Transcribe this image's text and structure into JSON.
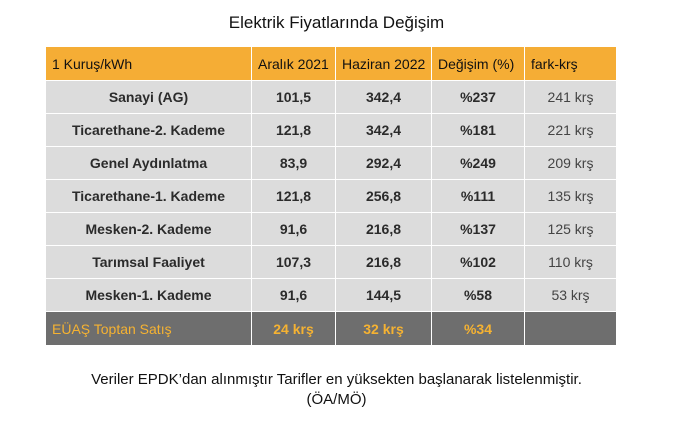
{
  "title": "Elektrik Fiyatlarında Değişim",
  "table": {
    "headers": [
      "1 Kuruş/kWh",
      "Aralık 2021",
      "Haziran 2022",
      "Değişim (%)",
      "fark-krş"
    ],
    "rows": [
      {
        "name": "Sanayi (AG)",
        "dec2021": "101,5",
        "jun2022": "342,4",
        "change": "%237",
        "diff": "241 krş"
      },
      {
        "name": "Ticarethane-2. Kademe",
        "dec2021": "121,8",
        "jun2022": "342,4",
        "change": "%181",
        "diff": "221 krş"
      },
      {
        "name": "Genel Aydınlatma",
        "dec2021": "83,9",
        "jun2022": "292,4",
        "change": "%249",
        "diff": "209 krş"
      },
      {
        "name": "Ticarethane-1. Kademe",
        "dec2021": "121,8",
        "jun2022": "256,8",
        "change": "%111",
        "diff": "135 krş"
      },
      {
        "name": "Mesken-2. Kademe",
        "dec2021": "91,6",
        "jun2022": "216,8",
        "change": "%137",
        "diff": "125 krş"
      },
      {
        "name": "Tarımsal Faaliyet",
        "dec2021": "107,3",
        "jun2022": "216,8",
        "change": "%102",
        "diff": "110 krş"
      },
      {
        "name": "Mesken-1. Kademe",
        "dec2021": "91,6",
        "jun2022": "144,5",
        "change": "%58",
        "diff": "53 krş"
      }
    ],
    "footer": {
      "name": "EÜAŞ Toptan Satış",
      "dec2021": "24 krş",
      "jun2022": "32 krş",
      "change": "%34",
      "diff": ""
    }
  },
  "footnote": {
    "line1": "Veriler EPDK’dan alınmıştır Tarifler en yüksekten başlanarak  listelenmiştir.",
    "line2": "(ÖA/MÖ)"
  },
  "colors": {
    "header_bg": "#f5ad35",
    "row_bg": "#dcdcdc",
    "footer_bg": "#6e6e6e",
    "footer_text": "#f5b232"
  }
}
